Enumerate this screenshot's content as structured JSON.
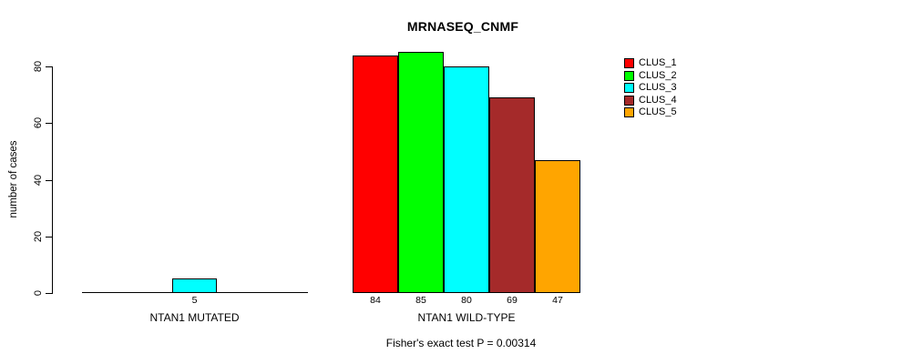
{
  "figure": {
    "background": "#ffffff",
    "title": "MRNASEQ_CNMF",
    "footer": "Fisher's exact test P = 0.00314"
  },
  "chart_data": {
    "type": "bar",
    "title": "MRNASEQ_CNMF",
    "xlabel": "",
    "ylabel": "number of cases",
    "ylim": [
      0,
      80
    ],
    "yticks": [
      0,
      20,
      40,
      60,
      80
    ],
    "grid": false,
    "legend_position": "top-right",
    "categories": [
      "NTAN1 MUTATED",
      "NTAN1 WILD-TYPE"
    ],
    "series": [
      {
        "name": "CLUS_1",
        "color": "#ff0000",
        "values": [
          0,
          84
        ]
      },
      {
        "name": "CLUS_2",
        "color": "#00ff00",
        "values": [
          0,
          85
        ]
      },
      {
        "name": "CLUS_3",
        "color": "#00ffff",
        "values": [
          5,
          80
        ]
      },
      {
        "name": "CLUS_4",
        "color": "#a52a2a",
        "values": [
          0,
          69
        ]
      },
      {
        "name": "CLUS_5",
        "color": "#ffa500",
        "values": [
          0,
          47
        ]
      }
    ],
    "bar_value_labels": [
      [
        "",
        "",
        "5",
        "",
        ""
      ],
      [
        "84",
        "85",
        "80",
        "69",
        "47"
      ]
    ],
    "annotation": "Fisher's exact test P = 0.00314"
  }
}
